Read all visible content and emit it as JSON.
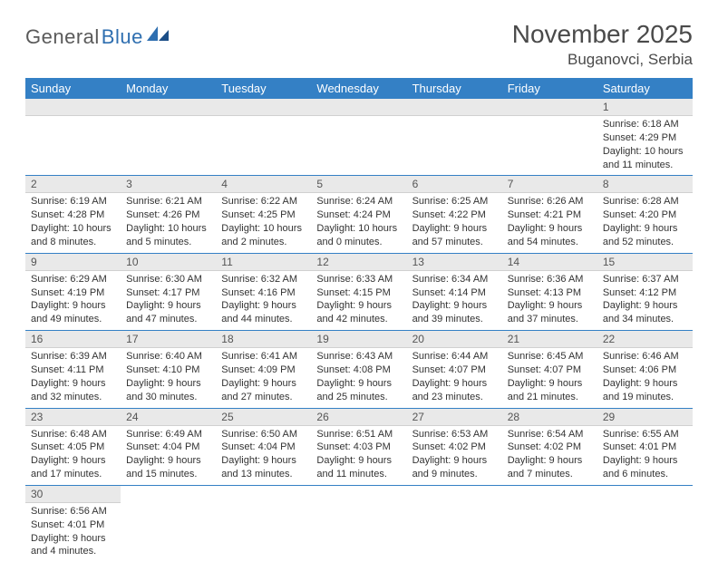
{
  "logo": {
    "text1": "General",
    "text2": "Blue"
  },
  "title": "November 2025",
  "location": "Buganovci, Serbia",
  "colors": {
    "header_bg": "#3480c5",
    "header_text": "#ffffff",
    "daynum_bg": "#e9e9e9",
    "row_divider": "#3480c5",
    "logo_gray": "#5a5a5a",
    "logo_blue": "#2f6fb0",
    "text": "#333333",
    "page_bg": "#ffffff"
  },
  "weekdays": [
    "Sunday",
    "Monday",
    "Tuesday",
    "Wednesday",
    "Thursday",
    "Friday",
    "Saturday"
  ],
  "weeks": [
    [
      {
        "n": "",
        "sr": "",
        "ss": "",
        "dl": ""
      },
      {
        "n": "",
        "sr": "",
        "ss": "",
        "dl": ""
      },
      {
        "n": "",
        "sr": "",
        "ss": "",
        "dl": ""
      },
      {
        "n": "",
        "sr": "",
        "ss": "",
        "dl": ""
      },
      {
        "n": "",
        "sr": "",
        "ss": "",
        "dl": ""
      },
      {
        "n": "",
        "sr": "",
        "ss": "",
        "dl": ""
      },
      {
        "n": "1",
        "sr": "Sunrise: 6:18 AM",
        "ss": "Sunset: 4:29 PM",
        "dl": "Daylight: 10 hours and 11 minutes."
      }
    ],
    [
      {
        "n": "2",
        "sr": "Sunrise: 6:19 AM",
        "ss": "Sunset: 4:28 PM",
        "dl": "Daylight: 10 hours and 8 minutes."
      },
      {
        "n": "3",
        "sr": "Sunrise: 6:21 AM",
        "ss": "Sunset: 4:26 PM",
        "dl": "Daylight: 10 hours and 5 minutes."
      },
      {
        "n": "4",
        "sr": "Sunrise: 6:22 AM",
        "ss": "Sunset: 4:25 PM",
        "dl": "Daylight: 10 hours and 2 minutes."
      },
      {
        "n": "5",
        "sr": "Sunrise: 6:24 AM",
        "ss": "Sunset: 4:24 PM",
        "dl": "Daylight: 10 hours and 0 minutes."
      },
      {
        "n": "6",
        "sr": "Sunrise: 6:25 AM",
        "ss": "Sunset: 4:22 PM",
        "dl": "Daylight: 9 hours and 57 minutes."
      },
      {
        "n": "7",
        "sr": "Sunrise: 6:26 AM",
        "ss": "Sunset: 4:21 PM",
        "dl": "Daylight: 9 hours and 54 minutes."
      },
      {
        "n": "8",
        "sr": "Sunrise: 6:28 AM",
        "ss": "Sunset: 4:20 PM",
        "dl": "Daylight: 9 hours and 52 minutes."
      }
    ],
    [
      {
        "n": "9",
        "sr": "Sunrise: 6:29 AM",
        "ss": "Sunset: 4:19 PM",
        "dl": "Daylight: 9 hours and 49 minutes."
      },
      {
        "n": "10",
        "sr": "Sunrise: 6:30 AM",
        "ss": "Sunset: 4:17 PM",
        "dl": "Daylight: 9 hours and 47 minutes."
      },
      {
        "n": "11",
        "sr": "Sunrise: 6:32 AM",
        "ss": "Sunset: 4:16 PM",
        "dl": "Daylight: 9 hours and 44 minutes."
      },
      {
        "n": "12",
        "sr": "Sunrise: 6:33 AM",
        "ss": "Sunset: 4:15 PM",
        "dl": "Daylight: 9 hours and 42 minutes."
      },
      {
        "n": "13",
        "sr": "Sunrise: 6:34 AM",
        "ss": "Sunset: 4:14 PM",
        "dl": "Daylight: 9 hours and 39 minutes."
      },
      {
        "n": "14",
        "sr": "Sunrise: 6:36 AM",
        "ss": "Sunset: 4:13 PM",
        "dl": "Daylight: 9 hours and 37 minutes."
      },
      {
        "n": "15",
        "sr": "Sunrise: 6:37 AM",
        "ss": "Sunset: 4:12 PM",
        "dl": "Daylight: 9 hours and 34 minutes."
      }
    ],
    [
      {
        "n": "16",
        "sr": "Sunrise: 6:39 AM",
        "ss": "Sunset: 4:11 PM",
        "dl": "Daylight: 9 hours and 32 minutes."
      },
      {
        "n": "17",
        "sr": "Sunrise: 6:40 AM",
        "ss": "Sunset: 4:10 PM",
        "dl": "Daylight: 9 hours and 30 minutes."
      },
      {
        "n": "18",
        "sr": "Sunrise: 6:41 AM",
        "ss": "Sunset: 4:09 PM",
        "dl": "Daylight: 9 hours and 27 minutes."
      },
      {
        "n": "19",
        "sr": "Sunrise: 6:43 AM",
        "ss": "Sunset: 4:08 PM",
        "dl": "Daylight: 9 hours and 25 minutes."
      },
      {
        "n": "20",
        "sr": "Sunrise: 6:44 AM",
        "ss": "Sunset: 4:07 PM",
        "dl": "Daylight: 9 hours and 23 minutes."
      },
      {
        "n": "21",
        "sr": "Sunrise: 6:45 AM",
        "ss": "Sunset: 4:07 PM",
        "dl": "Daylight: 9 hours and 21 minutes."
      },
      {
        "n": "22",
        "sr": "Sunrise: 6:46 AM",
        "ss": "Sunset: 4:06 PM",
        "dl": "Daylight: 9 hours and 19 minutes."
      }
    ],
    [
      {
        "n": "23",
        "sr": "Sunrise: 6:48 AM",
        "ss": "Sunset: 4:05 PM",
        "dl": "Daylight: 9 hours and 17 minutes."
      },
      {
        "n": "24",
        "sr": "Sunrise: 6:49 AM",
        "ss": "Sunset: 4:04 PM",
        "dl": "Daylight: 9 hours and 15 minutes."
      },
      {
        "n": "25",
        "sr": "Sunrise: 6:50 AM",
        "ss": "Sunset: 4:04 PM",
        "dl": "Daylight: 9 hours and 13 minutes."
      },
      {
        "n": "26",
        "sr": "Sunrise: 6:51 AM",
        "ss": "Sunset: 4:03 PM",
        "dl": "Daylight: 9 hours and 11 minutes."
      },
      {
        "n": "27",
        "sr": "Sunrise: 6:53 AM",
        "ss": "Sunset: 4:02 PM",
        "dl": "Daylight: 9 hours and 9 minutes."
      },
      {
        "n": "28",
        "sr": "Sunrise: 6:54 AM",
        "ss": "Sunset: 4:02 PM",
        "dl": "Daylight: 9 hours and 7 minutes."
      },
      {
        "n": "29",
        "sr": "Sunrise: 6:55 AM",
        "ss": "Sunset: 4:01 PM",
        "dl": "Daylight: 9 hours and 6 minutes."
      }
    ],
    [
      {
        "n": "30",
        "sr": "Sunrise: 6:56 AM",
        "ss": "Sunset: 4:01 PM",
        "dl": "Daylight: 9 hours and 4 minutes."
      },
      {
        "n": "",
        "sr": "",
        "ss": "",
        "dl": ""
      },
      {
        "n": "",
        "sr": "",
        "ss": "",
        "dl": ""
      },
      {
        "n": "",
        "sr": "",
        "ss": "",
        "dl": ""
      },
      {
        "n": "",
        "sr": "",
        "ss": "",
        "dl": ""
      },
      {
        "n": "",
        "sr": "",
        "ss": "",
        "dl": ""
      },
      {
        "n": "",
        "sr": "",
        "ss": "",
        "dl": ""
      }
    ]
  ]
}
